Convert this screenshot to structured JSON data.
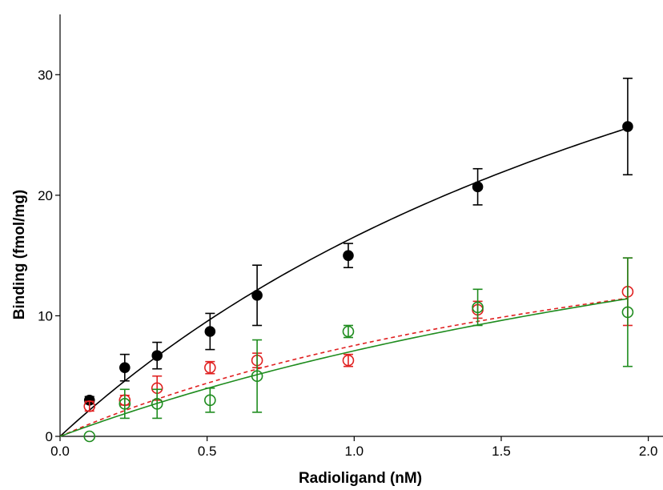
{
  "chart_data": {
    "type": "scatter",
    "title": "",
    "xlabel": "Radioligand (nM)",
    "ylabel": "Binding (fmol/mg)",
    "xlim": [
      0.0,
      2.05
    ],
    "ylim": [
      0,
      35
    ],
    "xticks": [
      "0.0",
      "0.5",
      "1.0",
      "1.5",
      "2.0"
    ],
    "xtick_values": [
      0.0,
      0.5,
      1.0,
      1.5,
      2.0
    ],
    "yticks": [
      "0",
      "10",
      "20",
      "30"
    ],
    "ytick_values": [
      0,
      10,
      20,
      30
    ],
    "grid": false,
    "legend": "none",
    "x": [
      0.1,
      0.22,
      0.33,
      0.51,
      0.67,
      0.98,
      1.42,
      1.93
    ],
    "series": [
      {
        "color": "#000000",
        "marker": "filled-circle",
        "y": [
          3.0,
          5.7,
          6.7,
          8.7,
          11.7,
          15.0,
          20.7,
          25.7
        ],
        "err": [
          0.3,
          1.1,
          1.1,
          1.5,
          2.5,
          1.0,
          1.5,
          4.0
        ],
        "fit": {
          "style": "solid",
          "bmax": 62.0,
          "kd": 2.75
        }
      },
      {
        "color": "#e02020",
        "marker": "open-circle",
        "y": [
          2.5,
          3.0,
          4.0,
          5.7,
          6.3,
          6.3,
          10.5,
          12.0
        ],
        "err": [
          0.4,
          0.4,
          1.0,
          0.5,
          0.6,
          0.5,
          0.7,
          2.8
        ],
        "fit": {
          "style": "dashed",
          "bmax": 26.0,
          "kd": 2.45
        }
      },
      {
        "color": "#1e8c1e",
        "marker": "open-circle",
        "y": [
          0.0,
          2.7,
          2.7,
          3.0,
          5.0,
          8.7,
          10.7,
          10.3
        ],
        "err": [
          0.0,
          1.2,
          1.2,
          1.0,
          3.0,
          0.5,
          1.5,
          4.5
        ],
        "fit": {
          "style": "solid",
          "bmax": 33.0,
          "kd": 3.65
        }
      }
    ]
  }
}
